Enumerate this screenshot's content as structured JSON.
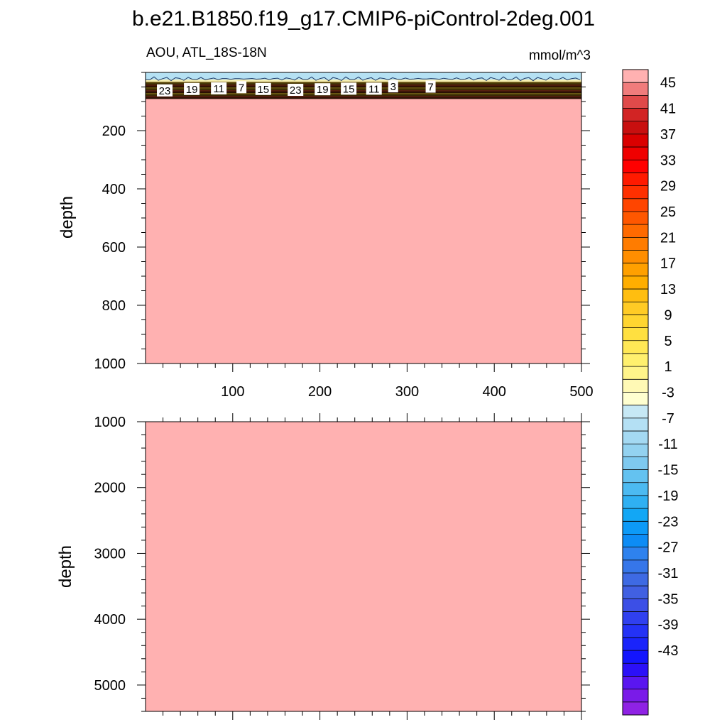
{
  "chart_data": {
    "type": "heatmap",
    "title": "b.e21.B1850.f19_g17.CMIP6-piControl-2deg.001",
    "left_label": "AOU, ATL_18S-18N",
    "units_label": "mmol/m^3",
    "ylabel": "depth",
    "x_ticks": [
      100,
      200,
      300,
      400,
      500
    ],
    "xlim": [
      0,
      500
    ],
    "panels": [
      {
        "name": "upper",
        "ylim": [
          1000,
          0
        ],
        "y_ticks": [
          200,
          400,
          600,
          800,
          1000
        ],
        "y_minor_step": 50,
        "fill_value": 49,
        "surface_band": {
          "negative_to_depth": 25,
          "transition_to_depth": 90
        },
        "contour_labels": [
          {
            "x": 22,
            "depth": 63,
            "text": "23"
          },
          {
            "x": 53,
            "depth": 58,
            "text": "19"
          },
          {
            "x": 84,
            "depth": 56,
            "text": "11"
          },
          {
            "x": 110,
            "depth": 52,
            "text": "7"
          },
          {
            "x": 135,
            "depth": 58,
            "text": "15"
          },
          {
            "x": 172,
            "depth": 61,
            "text": "23"
          },
          {
            "x": 203,
            "depth": 59,
            "text": "19"
          },
          {
            "x": 233,
            "depth": 57,
            "text": "15"
          },
          {
            "x": 262,
            "depth": 57,
            "text": "11"
          },
          {
            "x": 284,
            "depth": 49,
            "text": "3"
          },
          {
            "x": 327,
            "depth": 50,
            "text": "7"
          }
        ]
      },
      {
        "name": "lower",
        "ylim": [
          1000,
          5400
        ],
        "y_ticks": [
          1000,
          2000,
          3000,
          4000,
          5000
        ],
        "y_minor_step": 200,
        "fill_value": 49
      }
    ],
    "colorbar": {
      "labels": [
        "45",
        "41",
        "37",
        "33",
        "29",
        "25",
        "21",
        "17",
        "13",
        "9",
        "5",
        "1",
        "-3",
        "-7",
        "-11",
        "-15",
        "-19",
        "-23",
        "-27",
        "-31",
        "-35",
        "-39",
        "-43"
      ],
      "colors": [
        "#ffb1b1",
        "#f07c7c",
        "#e04a4a",
        "#d22424",
        "#c80f0f",
        "#da0000",
        "#ef0000",
        "#ff0000",
        "#ff1a00",
        "#ff3000",
        "#ff4500",
        "#ff5700",
        "#ff6a00",
        "#ff7c00",
        "#ff8e00",
        "#ffa000",
        "#ffae00",
        "#ffbe10",
        "#ffcb25",
        "#ffd530",
        "#ffe040",
        "#ffe855",
        "#fff06e",
        "#fff48a",
        "#fff9b5",
        "#ffffd0",
        "#c6e8f5",
        "#b4e0f4",
        "#a4d9f2",
        "#93d2f0",
        "#7ec9ef",
        "#64c2f0",
        "#4cbaf1",
        "#2fb0f2",
        "#12a7f5",
        "#0d9af7",
        "#0d8cf5",
        "#2e82ee",
        "#3676e9",
        "#3e6ae3",
        "#4160e2",
        "#3c4fe6",
        "#3040ef",
        "#2432f6",
        "#1a24fb",
        "#1315fd",
        "#2b10f8",
        "#5a16f0",
        "#7a1be8",
        "#8f22e4"
      ]
    }
  }
}
